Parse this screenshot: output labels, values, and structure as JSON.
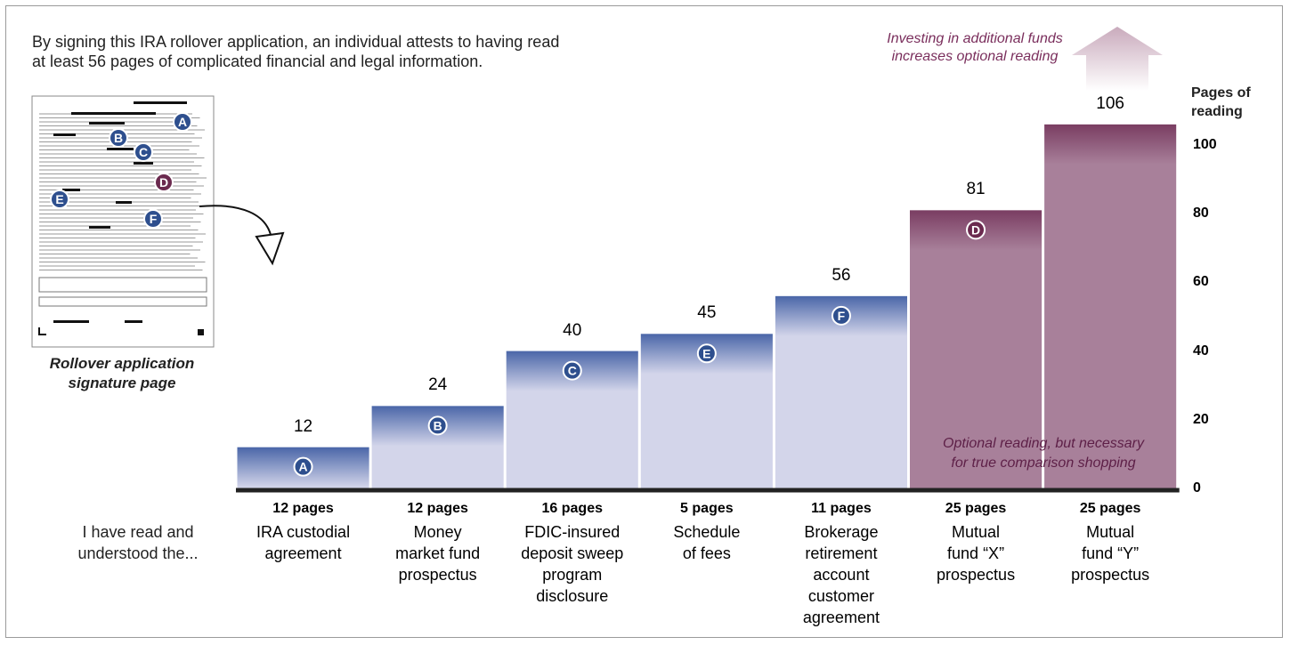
{
  "chart_data": {
    "type": "bar",
    "title": "By signing this IRA rollover application, an individual attests to having read\nat least 56 pages of complicated financial and legal information.",
    "y_axis_label": "Pages of\nreading",
    "lead_text": "I have read and\nunderstood the...",
    "thumbnail_caption": "Rollover application\nsignature page",
    "thumbnail_markers": [
      "A",
      "B",
      "C",
      "D",
      "E",
      "F"
    ],
    "annotation_top": "Investing in additional funds\nincreases optional reading",
    "annotation_optional": "Optional reading, but necessary\nfor true comparison shopping",
    "categories": [
      "IRA custodial\nagreement",
      "Money\nmarket fund\nprospectus",
      "FDIC-insured\ndeposit sweep\nprogram\ndisclosure",
      "Schedule\nof fees",
      "Brokerage\nretirement\naccount\ncustomer\nagreement",
      "Mutual\nfund “X”\nprospectus",
      "Mutual\nfund “Y”\nprospectus"
    ],
    "page_labels": [
      "12 pages",
      "12 pages",
      "16 pages",
      "5 pages",
      "11 pages",
      "25 pages",
      "25 pages"
    ],
    "values": [
      12,
      24,
      40,
      45,
      56,
      81,
      106
    ],
    "markers": [
      "A",
      "B",
      "C",
      "E",
      "F",
      "D",
      null
    ],
    "colors": [
      "#4a66a8",
      "#4a66a8",
      "#4a66a8",
      "#4a66a8",
      "#4a66a8",
      "#7a3d62",
      "#7a3d62"
    ],
    "fill_colors": [
      "#d3d5ea",
      "#d3d5ea",
      "#d3d5ea",
      "#d3d5ea",
      "#d3d5ea",
      "#a8809a",
      "#a8809a"
    ],
    "ylim": [
      0,
      110
    ],
    "yticks": [
      0,
      20,
      40,
      60,
      80,
      100
    ]
  }
}
